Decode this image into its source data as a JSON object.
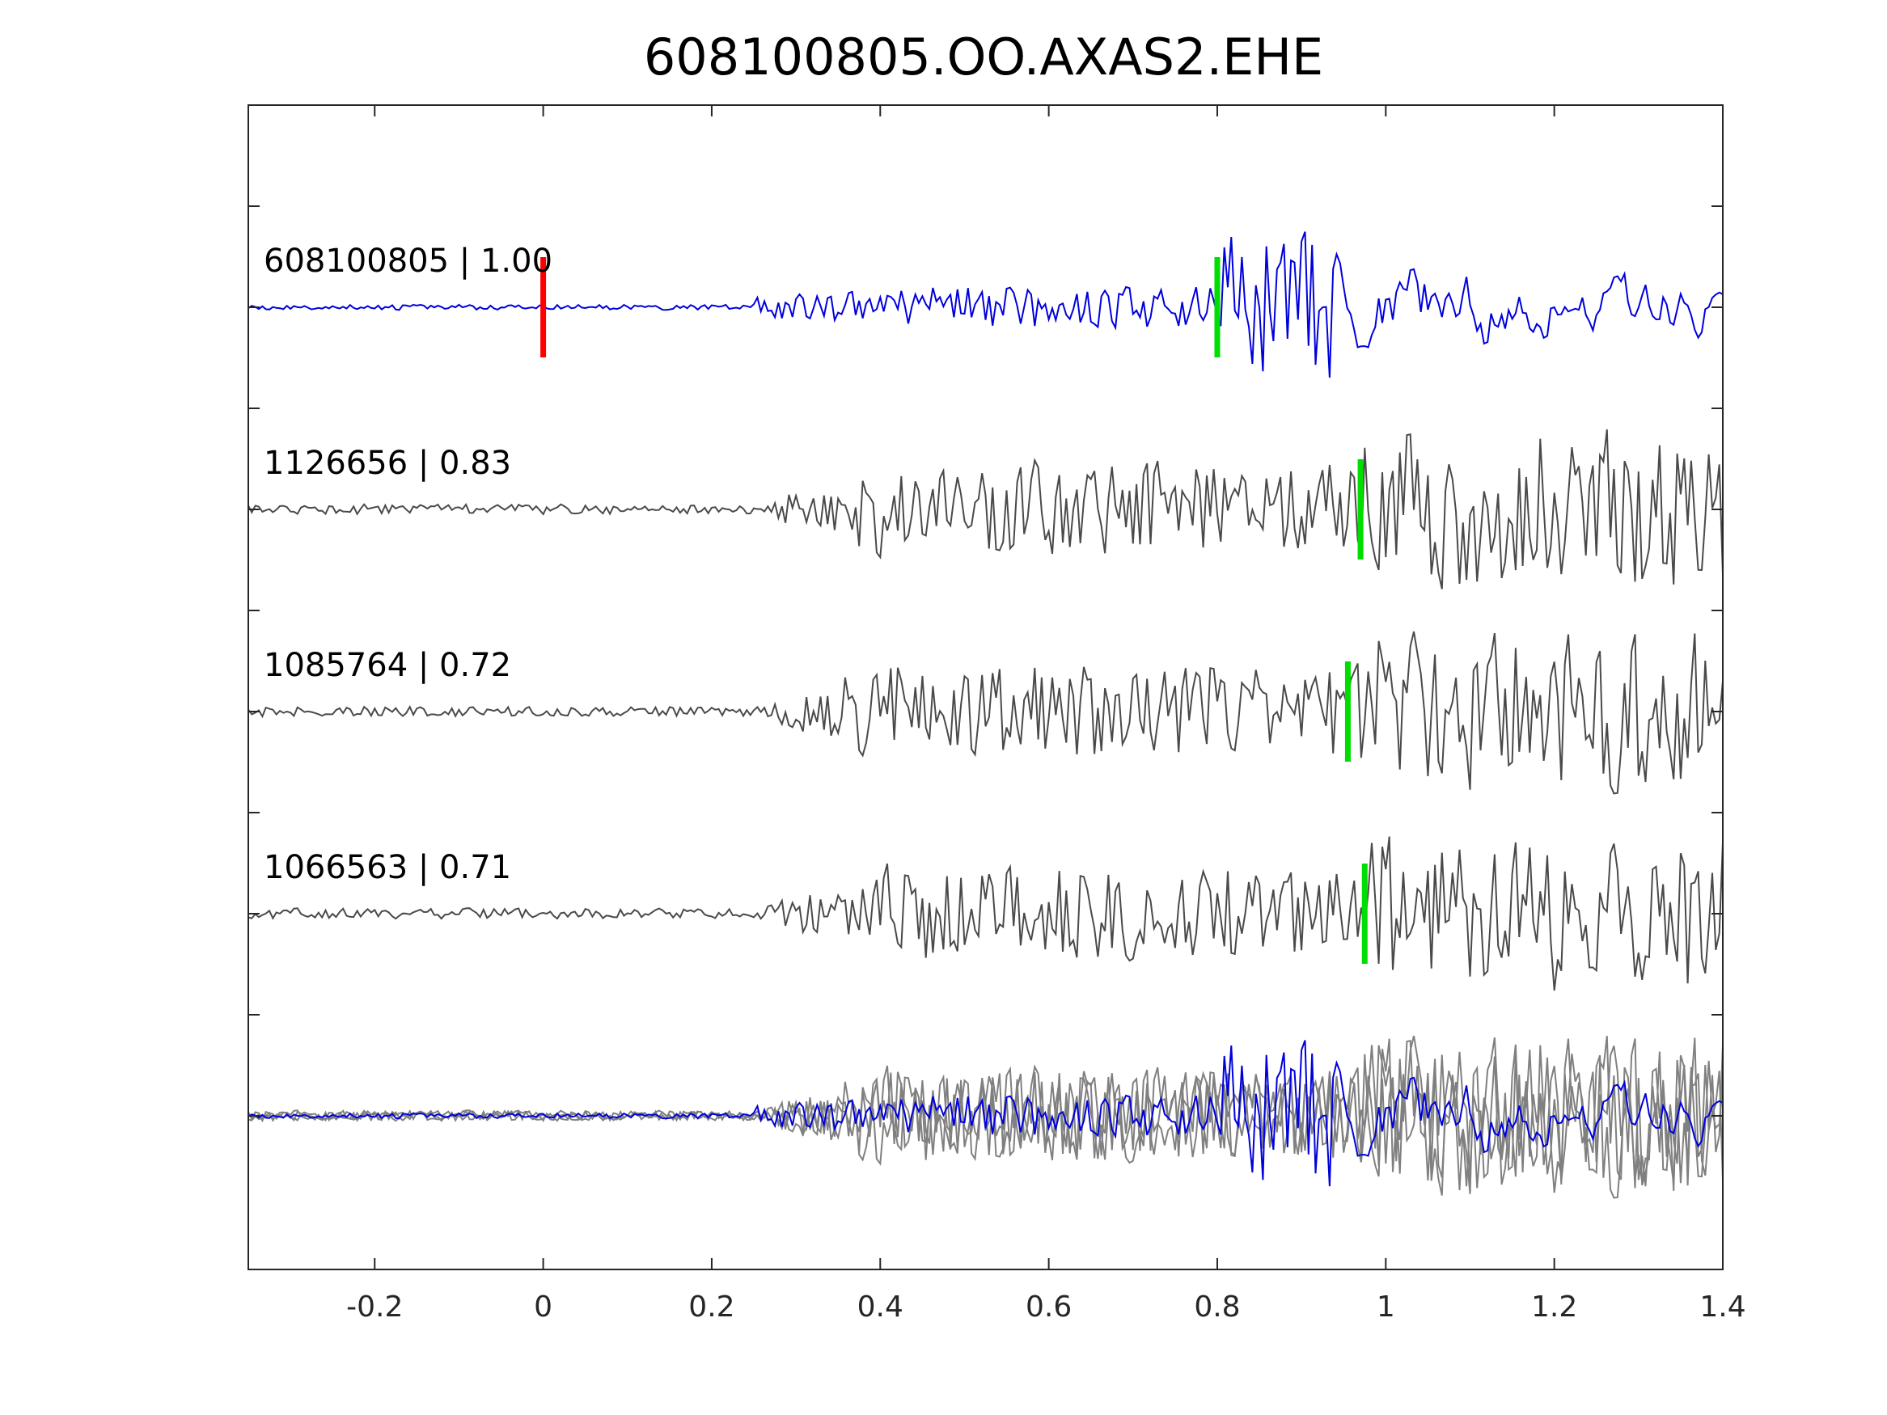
{
  "chart_data": {
    "type": "line",
    "title": "608100805.OO.AXAS2.EHE",
    "xlabel": "",
    "ylabel": "",
    "xlim": [
      -0.35,
      1.4
    ],
    "x_ticks": [
      -0.2,
      0,
      0.2,
      0.4,
      0.6,
      0.8,
      1,
      1.2,
      1.4
    ],
    "x_tick_labels": [
      "-0.2",
      "0",
      "0.2",
      "0.4",
      "0.6",
      "0.8",
      "1",
      "1.2",
      "1.4"
    ],
    "y_ticks": 11,
    "grid": false,
    "colors": {
      "template": "#0000dd",
      "detection": "#4a4a4a",
      "overlay": "#808080",
      "p_pick": "#ff0000",
      "s_pick": "#00dd00"
    },
    "series": [
      {
        "label": "608100805 | 1.00",
        "id": "608100805",
        "cc": 1.0,
        "role": "template",
        "s_pick": 0.8,
        "p_pick": 0.0,
        "seed": 3
      },
      {
        "label": "1126656 | 0.83",
        "id": "1126656",
        "cc": 0.83,
        "role": "detection",
        "s_pick": 0.97,
        "seed": 11
      },
      {
        "label": "1085764 | 0.72",
        "id": "1085764",
        "cc": 0.72,
        "role": "detection",
        "s_pick": 0.955,
        "seed": 23
      },
      {
        "label": "1066563 | 0.71",
        "id": "1066563",
        "cc": 0.71,
        "role": "detection",
        "s_pick": 0.975,
        "seed": 37
      }
    ]
  }
}
